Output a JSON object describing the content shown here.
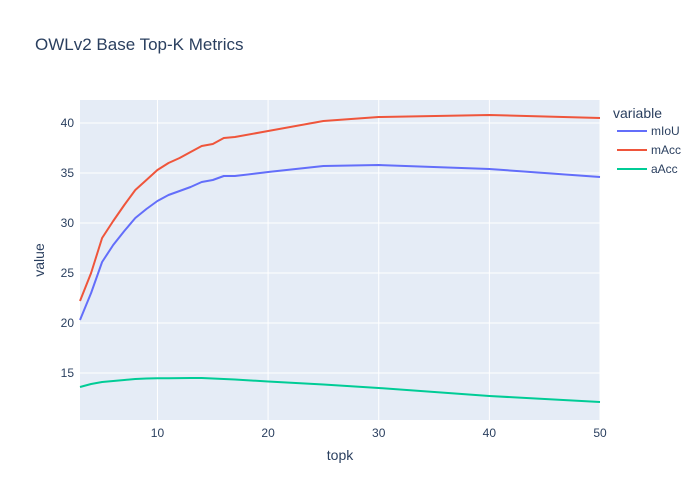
{
  "chart_data": {
    "type": "line",
    "title": "OWLv2 Base Top-K Metrics",
    "xlabel": "topk",
    "ylabel": "value",
    "xlim": [
      3,
      50
    ],
    "ylim": [
      10.3,
      42.3
    ],
    "xticks": [
      10,
      20,
      30,
      40,
      50
    ],
    "yticks": [
      15,
      20,
      25,
      30,
      35,
      40
    ],
    "grid": true,
    "legend": {
      "title": "variable",
      "position": "right"
    },
    "x": [
      3,
      4,
      5,
      6,
      7,
      8,
      9,
      10,
      11,
      12,
      13,
      14,
      15,
      16,
      17,
      20,
      25,
      30,
      40,
      50
    ],
    "series": [
      {
        "name": "mIoU",
        "color": "#636efa",
        "values": [
          20.3,
          23.0,
          26.1,
          27.8,
          29.2,
          30.5,
          31.4,
          32.2,
          32.8,
          33.2,
          33.6,
          34.1,
          34.3,
          34.7,
          34.7,
          35.1,
          35.7,
          35.8,
          35.4,
          34.6
        ]
      },
      {
        "name": "mAcc",
        "color": "#ef553b",
        "values": [
          22.2,
          25.0,
          28.5,
          30.2,
          31.8,
          33.3,
          34.3,
          35.3,
          36.0,
          36.5,
          37.1,
          37.7,
          37.9,
          38.5,
          38.6,
          39.2,
          40.2,
          40.6,
          40.8,
          40.5
        ]
      },
      {
        "name": "aAcc",
        "color": "#00cc96",
        "values": [
          13.6,
          13.9,
          14.1,
          14.2,
          14.3,
          14.4,
          14.45,
          14.47,
          14.48,
          14.49,
          14.5,
          14.5,
          14.45,
          14.4,
          14.35,
          14.15,
          13.85,
          13.5,
          12.7,
          12.1
        ]
      }
    ]
  }
}
